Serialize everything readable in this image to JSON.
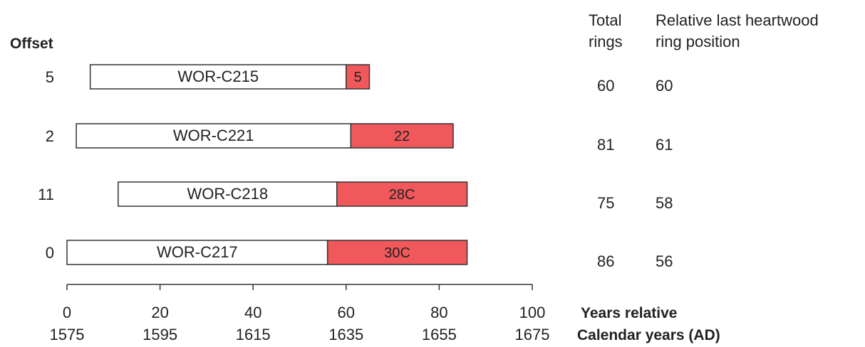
{
  "headers": {
    "offset": "Offset",
    "total_rings_line1": "Total",
    "total_rings_line2": "rings",
    "relative_line1": "Relative last heartwood",
    "relative_line2": "ring position"
  },
  "axis": {
    "relative_label": "Years relative",
    "calendar_label": "Calendar years (AD)"
  },
  "colors": {
    "sapwood": "#f0585c",
    "heartwood": "#ffffff",
    "outline": "#333333"
  },
  "chart_data": {
    "type": "bar",
    "orientation": "horizontal",
    "xlim": [
      0,
      100
    ],
    "ticks": [
      {
        "relative": "0",
        "calendar": "1575",
        "value": 0
      },
      {
        "relative": "20",
        "calendar": "1595",
        "value": 20
      },
      {
        "relative": "40",
        "calendar": "1615",
        "value": 40
      },
      {
        "relative": "60",
        "calendar": "1635",
        "value": 60
      },
      {
        "relative": "80",
        "calendar": "1655",
        "value": 80
      },
      {
        "relative": "100",
        "calendar": "1675",
        "value": 100
      }
    ],
    "samples": [
      {
        "id": "WOR-C215",
        "offset": "5",
        "start": 5,
        "heartwood_end": 60,
        "end": 65,
        "sapwood_label": "5",
        "total_rings": "60",
        "last_heartwood": "60"
      },
      {
        "id": "WOR-C221",
        "offset": "2",
        "start": 2,
        "heartwood_end": 61,
        "end": 83,
        "sapwood_label": "22",
        "total_rings": "81",
        "last_heartwood": "61"
      },
      {
        "id": "WOR-C218",
        "offset": "11",
        "start": 11,
        "heartwood_end": 58,
        "end": 86,
        "sapwood_label": "28C",
        "total_rings": "75",
        "last_heartwood": "58"
      },
      {
        "id": "WOR-C217",
        "offset": "0",
        "start": 0,
        "heartwood_end": 56,
        "end": 86,
        "sapwood_label": "30C",
        "total_rings": "86",
        "last_heartwood": "56"
      }
    ]
  }
}
